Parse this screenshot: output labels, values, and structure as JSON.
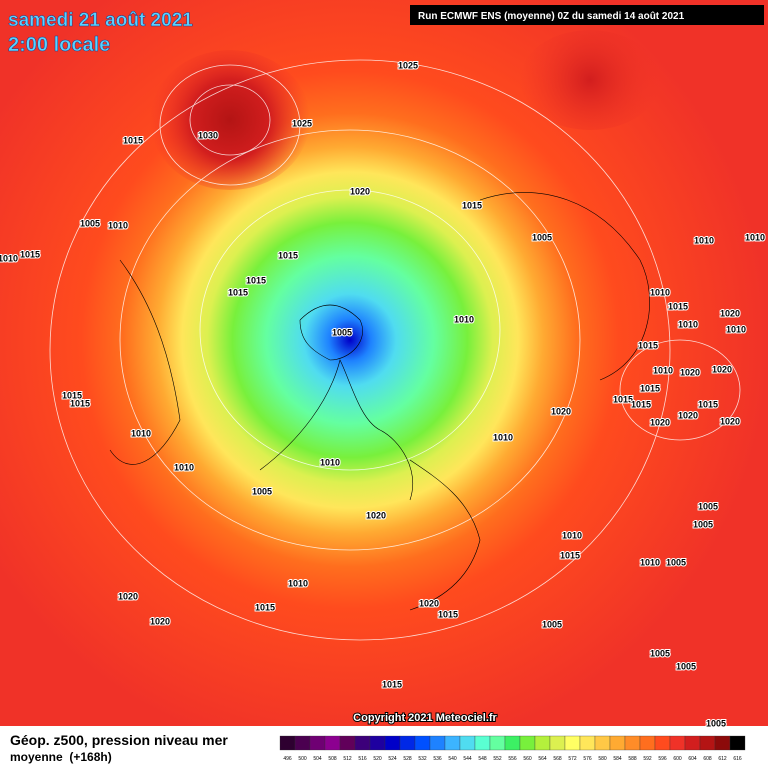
{
  "header": {
    "date": "samedi 21 août 2021",
    "time": "2:00 locale",
    "run": "Run ECMWF ENS (moyenne) 0Z du samedi 14 août 2021"
  },
  "isobar_labels": [
    "1030",
    "1025",
    "1025",
    "1015",
    "1020",
    "1015",
    "1005",
    "1010",
    "1010",
    "1015",
    "1015",
    "1015",
    "1015",
    "1005",
    "1010",
    "1005",
    "1010",
    "1010",
    "1010",
    "1015",
    "1010",
    "1020",
    "1010",
    "1015",
    "1020",
    "1010",
    "1020",
    "1015",
    "1015",
    "1015",
    "1020",
    "1020",
    "1020",
    "1015",
    "1020",
    "1015",
    "1015",
    "1010",
    "1010",
    "1010",
    "1010",
    "1005",
    "1020",
    "1005",
    "1005",
    "1010",
    "1015",
    "1010",
    "1005",
    "1010",
    "1015",
    "1020",
    "1020",
    "1020",
    "1015",
    "1005",
    "1005",
    "1005",
    "1015",
    "1005"
  ],
  "copyright": "Copyright 2021 Meteociel.fr",
  "footer": {
    "title": "Géop. z500, pression niveau mer",
    "subtitle": "moyenne  (+168h)"
  },
  "legend": {
    "values": [
      496,
      500,
      504,
      508,
      512,
      516,
      520,
      524,
      528,
      532,
      536,
      540,
      544,
      548,
      552,
      556,
      560,
      564,
      568,
      572,
      576,
      580,
      584,
      588,
      592,
      596,
      600,
      604,
      608,
      612,
      616
    ],
    "colors": [
      "#2e0030",
      "#4b0050",
      "#6f0073",
      "#8c0090",
      "#61005a",
      "#3c007a",
      "#1e00a0",
      "#0000c8",
      "#0028e6",
      "#0050ff",
      "#1e82ff",
      "#3cb4ff",
      "#50dcf0",
      "#5affd2",
      "#64ffa0",
      "#3cf064",
      "#78f03c",
      "#b4f03c",
      "#dcf050",
      "#ffff64",
      "#ffe65a",
      "#ffc846",
      "#ffaa32",
      "#ff8c28",
      "#ff6e1e",
      "#ff4b1e",
      "#f03228",
      "#d21e1e",
      "#b41414",
      "#8c0a0a",
      "#000000"
    ]
  }
}
